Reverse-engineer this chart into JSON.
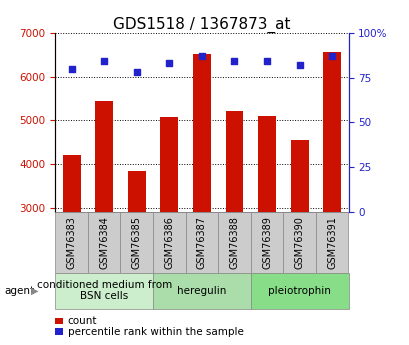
{
  "title": "GDS1518 / 1367873_at",
  "samples": [
    "GSM76383",
    "GSM76384",
    "GSM76385",
    "GSM76386",
    "GSM76387",
    "GSM76388",
    "GSM76389",
    "GSM76390",
    "GSM76391"
  ],
  "counts": [
    4200,
    5450,
    3850,
    5080,
    6520,
    5220,
    5100,
    4550,
    6560
  ],
  "percentiles": [
    80,
    84,
    78,
    83,
    87,
    84,
    84,
    82,
    87
  ],
  "ylim_left": [
    2900,
    7000
  ],
  "ylim_right": [
    0,
    100
  ],
  "yticks_left": [
    3000,
    4000,
    5000,
    6000,
    7000
  ],
  "yticks_right": [
    0,
    25,
    50,
    75,
    100
  ],
  "bar_color": "#cc1100",
  "dot_color": "#2222cc",
  "bar_width": 0.55,
  "groups": [
    {
      "label": "conditioned medium from\nBSN cells",
      "start": 0,
      "end": 3,
      "color": "#cceecc"
    },
    {
      "label": "heregulin",
      "start": 3,
      "end": 6,
      "color": "#aaddaa"
    },
    {
      "label": "pleiotrophin",
      "start": 6,
      "end": 9,
      "color": "#88dd88"
    }
  ],
  "agent_label": "agent",
  "legend_count_label": "count",
  "legend_pct_label": "percentile rank within the sample",
  "plot_bg": "#ffffff",
  "sample_box_bg": "#cccccc",
  "title_fontsize": 11,
  "tick_fontsize": 7.5,
  "label_fontsize": 7,
  "group_fontsize": 7.5
}
